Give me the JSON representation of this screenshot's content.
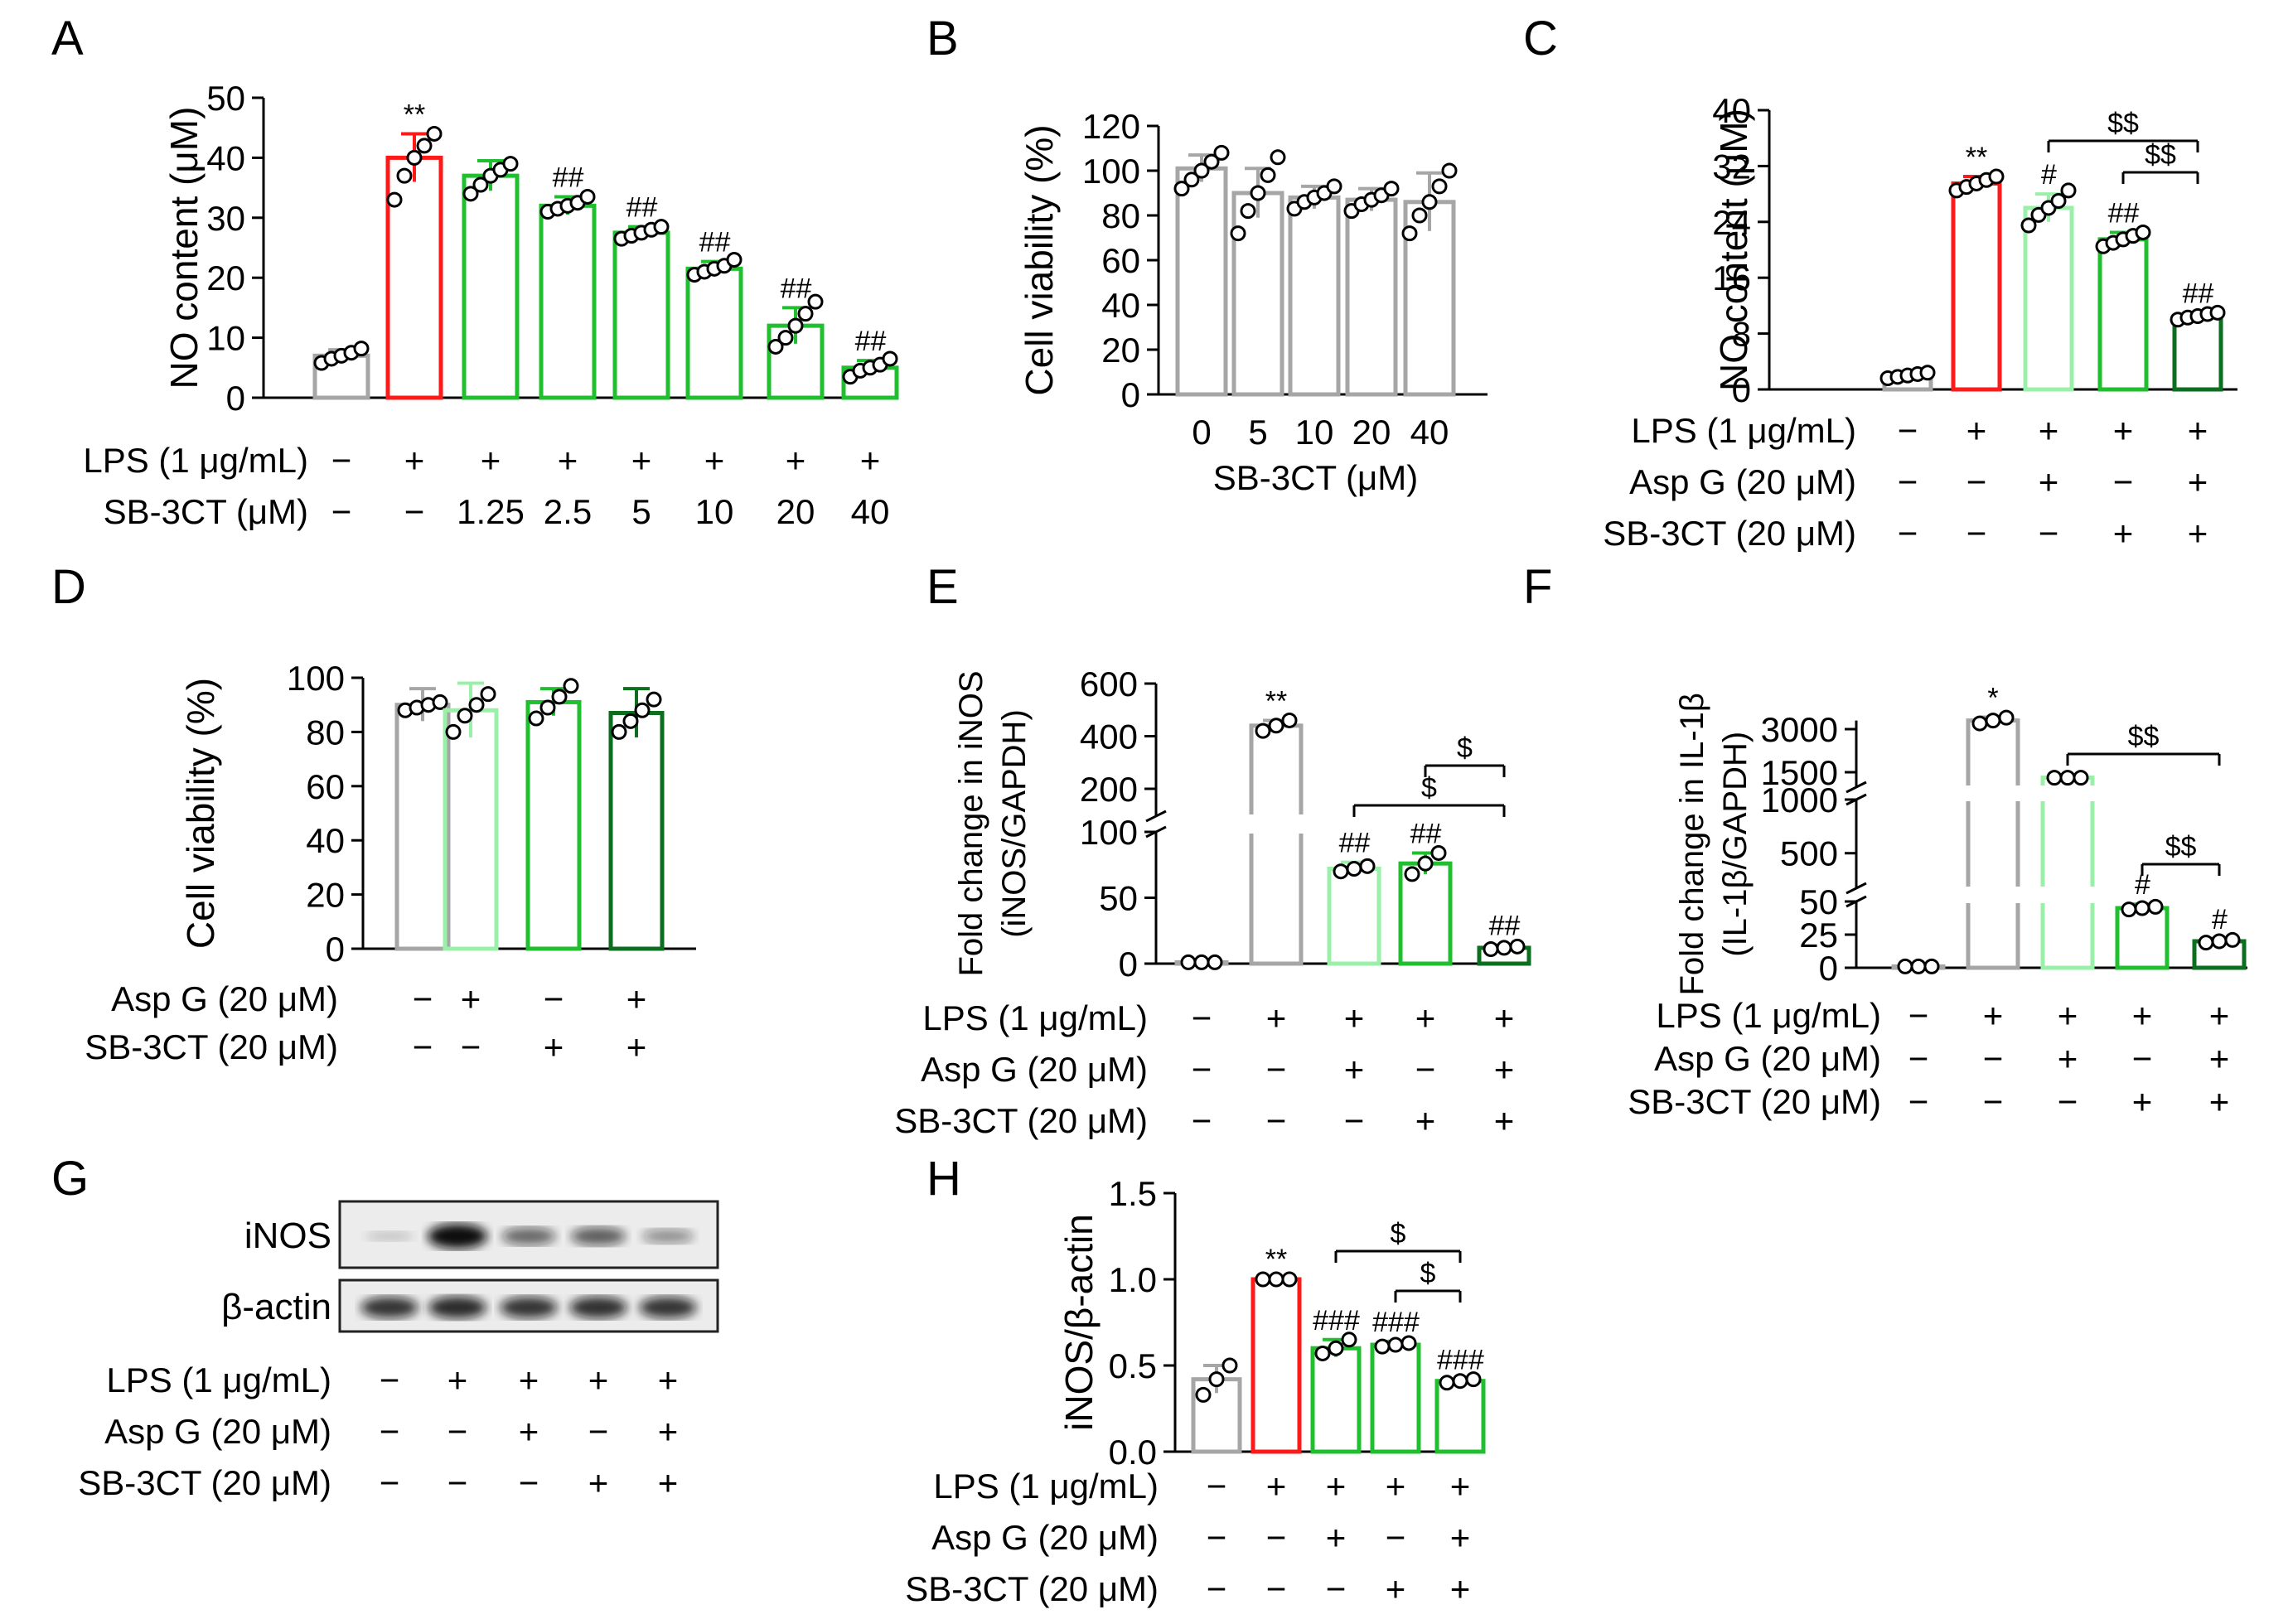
{
  "colors": {
    "control": "#a6a6a6",
    "lps": "#ff1a1a",
    "aspg": "#9af0a8",
    "sb3ct": "#1fbf2f",
    "combo": "#0c6e1f",
    "axis": "#000000"
  },
  "chart_data": [
    {
      "panel": "A",
      "type": "bar",
      "ylabel": "NO content (μM)",
      "ylim": [
        0,
        50
      ],
      "yticks": [
        0,
        10,
        20,
        30,
        40,
        50
      ],
      "values": [
        7,
        40,
        37,
        32,
        27.5,
        21.5,
        12,
        5
      ],
      "errors": [
        1,
        4,
        2.5,
        1.5,
        1,
        1.2,
        3,
        1.2
      ],
      "colors": [
        "control",
        "lps",
        "sb3ct",
        "sb3ct",
        "sb3ct",
        "sb3ct",
        "sb3ct",
        "sb3ct"
      ],
      "points": [
        [
          5.8,
          6.5,
          7.0,
          7.5,
          8.2
        ],
        [
          33,
          37,
          40,
          42,
          44
        ],
        [
          34,
          35.5,
          37,
          38,
          39
        ],
        [
          31,
          31.5,
          32,
          32.5,
          33.5
        ],
        [
          26.5,
          27,
          27.5,
          28,
          28.5
        ],
        [
          20.5,
          21,
          21.5,
          22,
          23
        ],
        [
          8.5,
          10,
          12,
          14,
          16
        ],
        [
          3.5,
          4.5,
          5,
          5.5,
          6.5
        ]
      ],
      "sig": [
        "",
        "**",
        "",
        "##",
        "##",
        "##",
        "##",
        "##"
      ],
      "conditions": [
        {
          "label": "LPS (1 μg/mL)",
          "values": [
            "−",
            "+",
            "+",
            "+",
            "+",
            "+",
            "+",
            "+"
          ]
        },
        {
          "label": "SB-3CT (μM)",
          "values": [
            "−",
            "−",
            "1.25",
            "2.5",
            "5",
            "10",
            "20",
            "40"
          ]
        }
      ]
    },
    {
      "panel": "B",
      "type": "bar",
      "ylabel": "Cell viability (%)",
      "ylim": [
        0,
        120
      ],
      "yticks": [
        0,
        20,
        40,
        60,
        80,
        100,
        120
      ],
      "categories": [
        "0",
        "5",
        "10",
        "20",
        "40"
      ],
      "xlabel": "SB-3CT (μM)",
      "values": [
        101,
        90,
        88,
        87,
        86
      ],
      "errors": [
        6,
        11,
        5,
        5,
        13
      ],
      "colors": [
        "control",
        "control",
        "control",
        "control",
        "control"
      ],
      "points": [
        [
          92,
          96,
          100,
          104,
          108
        ],
        [
          72,
          82,
          90,
          98,
          106
        ],
        [
          83,
          86,
          88,
          90,
          93
        ],
        [
          82,
          85,
          87,
          89,
          92
        ],
        [
          72,
          80,
          86,
          93,
          100
        ]
      ]
    },
    {
      "panel": "C",
      "type": "bar",
      "ylabel": "NO content (μM)",
      "ylim": [
        0,
        40
      ],
      "yticks": [
        0,
        8,
        16,
        24,
        32,
        40
      ],
      "values": [
        2,
        29.5,
        26,
        21.5,
        10.5
      ],
      "errors": [
        0.3,
        1,
        2,
        1,
        0.5
      ],
      "colors": [
        "control",
        "lps",
        "aspg",
        "sb3ct",
        "combo"
      ],
      "points": [
        [
          1.6,
          1.8,
          2.0,
          2.2,
          2.4
        ],
        [
          28.5,
          29,
          29.5,
          30,
          30.5
        ],
        [
          23.5,
          25,
          26,
          27,
          28.5
        ],
        [
          20.5,
          21,
          21.5,
          22,
          22.5
        ],
        [
          10,
          10.3,
          10.5,
          10.8,
          11
        ]
      ],
      "sig": [
        "",
        "**",
        "#",
        "##",
        "##"
      ],
      "brackets": [
        {
          "from": 2,
          "to": 4,
          "label": "$$"
        },
        {
          "from": 3,
          "to": 4,
          "label": "$$"
        }
      ],
      "conditions": [
        {
          "label": "LPS (1 μg/mL)",
          "values": [
            "−",
            "+",
            "+",
            "+",
            "+"
          ]
        },
        {
          "label": "Asp G (20 μM)",
          "values": [
            "−",
            "−",
            "+",
            "−",
            "+"
          ]
        },
        {
          "label": "SB-3CT (20 μM)",
          "values": [
            "−",
            "−",
            "−",
            "+",
            "+"
          ]
        }
      ]
    },
    {
      "panel": "D",
      "type": "bar",
      "ylabel": "Cell viability (%)",
      "ylim": [
        0,
        100
      ],
      "yticks": [
        0,
        20,
        40,
        60,
        80,
        100
      ],
      "values": [
        90,
        88,
        91,
        87
      ],
      "errors": [
        6,
        10,
        5,
        9
      ],
      "colors": [
        "control",
        "aspg",
        "sb3ct",
        "combo"
      ],
      "points": [
        [
          88,
          89,
          90,
          91
        ],
        [
          80,
          86,
          90,
          94
        ],
        [
          85,
          89,
          93,
          97
        ],
        [
          80,
          84,
          88,
          92
        ]
      ],
      "conditions": [
        {
          "label": "Asp G (20 μM)",
          "values": [
            "−",
            "+",
            "−",
            "+"
          ]
        },
        {
          "label": "SB-3CT (20 μM)",
          "values": [
            "−",
            "−",
            "+",
            "+"
          ]
        }
      ]
    },
    {
      "panel": "E",
      "type": "bar",
      "ylabel": [
        "Fold change in iNOS",
        "(iNOS/GAPDH)"
      ],
      "ylim": [
        0,
        600
      ],
      "axis_break": [
        100,
        200
      ],
      "yticks_lower": [
        0,
        50,
        100
      ],
      "yticks_upper": [
        200,
        400,
        600
      ],
      "values": [
        1,
        440,
        72,
        76,
        12
      ],
      "errors": [
        0.2,
        20,
        5,
        8,
        2
      ],
      "colors": [
        "control",
        "control",
        "aspg",
        "sb3ct",
        "combo"
      ],
      "points": [
        [
          1,
          1,
          1
        ],
        [
          420,
          440,
          460
        ],
        [
          70,
          72,
          74
        ],
        [
          68,
          76,
          84
        ],
        [
          11,
          12,
          13
        ]
      ],
      "sig": [
        "",
        "**",
        "##",
        "##",
        "##"
      ],
      "brackets": [
        {
          "from": 2,
          "to": 4,
          "label": "$"
        },
        {
          "from": 3,
          "to": 4,
          "label": "$"
        }
      ],
      "conditions": [
        {
          "label": "LPS (1 μg/mL)",
          "values": [
            "−",
            "+",
            "+",
            "+",
            "+"
          ]
        },
        {
          "label": "Asp G (20 μM)",
          "values": [
            "−",
            "−",
            "+",
            "−",
            "+"
          ]
        },
        {
          "label": "SB-3CT (20 μM)",
          "values": [
            "−",
            "−",
            "−",
            "+",
            "+"
          ]
        }
      ]
    },
    {
      "panel": "F",
      "type": "bar",
      "ylabel": [
        "Fold change in IL-1β",
        "(IL-1β/GAPDH)"
      ],
      "ylim": [
        0,
        3000
      ],
      "axis_breaks": [
        [
          50,
          250
        ],
        [
          1000,
          1500
        ]
      ],
      "yticks_lower": [
        0,
        25,
        50
      ],
      "yticks_mid": [
        500,
        1000
      ],
      "yticks_upper": [
        1500,
        3000
      ],
      "values": [
        1,
        3300,
        1400,
        45,
        20
      ],
      "errors": [
        0.2,
        120,
        20,
        3,
        2
      ],
      "colors": [
        "control",
        "control",
        "aspg",
        "sb3ct",
        "combo"
      ],
      "points": [
        [
          1,
          1,
          1
        ],
        [
          3200,
          3300,
          3400
        ],
        [
          1400,
          1400,
          1400
        ],
        [
          44,
          45,
          46
        ],
        [
          19,
          20,
          21
        ]
      ],
      "sig": [
        "",
        "*",
        "",
        "#",
        "#"
      ],
      "brackets": [
        {
          "from": 2,
          "to": 4,
          "label": "$$"
        },
        {
          "from": 3,
          "to": 4,
          "label": "$$"
        }
      ],
      "conditions": [
        {
          "label": "LPS (1 μg/mL)",
          "values": [
            "−",
            "+",
            "+",
            "+",
            "+"
          ]
        },
        {
          "label": "Asp G (20 μM)",
          "values": [
            "−",
            "−",
            "+",
            "−",
            "+"
          ]
        },
        {
          "label": "SB-3CT (20 μM)",
          "values": [
            "−",
            "−",
            "−",
            "+",
            "+"
          ]
        }
      ]
    },
    {
      "panel": "H",
      "type": "bar",
      "ylabel": "iNOS/β-actin",
      "ylim": [
        0,
        1.5
      ],
      "yticks": [
        "0.0",
        "0.5",
        "1.0",
        "1.5"
      ],
      "values": [
        0.42,
        1.0,
        0.6,
        0.62,
        0.41
      ],
      "errors": [
        0.08,
        0.005,
        0.05,
        0.02,
        0.01
      ],
      "colors": [
        "control",
        "lps",
        "sb3ct",
        "sb3ct",
        "sb3ct"
      ],
      "points": [
        [
          0.33,
          0.42,
          0.5
        ],
        [
          1.0,
          1.0,
          1.0
        ],
        [
          0.57,
          0.6,
          0.65
        ],
        [
          0.61,
          0.62,
          0.63
        ],
        [
          0.4,
          0.41,
          0.42
        ]
      ],
      "sig": [
        "",
        "**",
        "###",
        "###",
        "###"
      ],
      "brackets": [
        {
          "from": 2,
          "to": 4,
          "label": "$"
        },
        {
          "from": 3,
          "to": 4,
          "label": "$"
        }
      ],
      "conditions": [
        {
          "label": "LPS (1 μg/mL)",
          "values": [
            "−",
            "+",
            "+",
            "+",
            "+"
          ]
        },
        {
          "label": "Asp G (20 μM)",
          "values": [
            "−",
            "−",
            "+",
            "−",
            "+"
          ]
        },
        {
          "label": "SB-3CT (20 μM)",
          "values": [
            "−",
            "−",
            "−",
            "+",
            "+"
          ]
        }
      ]
    }
  ],
  "western_blot": {
    "panel": "G",
    "bands": [
      {
        "label": "iNOS",
        "intensities": [
          0.05,
          1.0,
          0.55,
          0.6,
          0.35
        ]
      },
      {
        "label": "β-actin",
        "intensities": [
          0.8,
          0.85,
          0.8,
          0.82,
          0.8
        ]
      }
    ],
    "conditions": [
      {
        "label": "LPS (1 μg/mL)",
        "values": [
          "−",
          "+",
          "+",
          "+",
          "+"
        ]
      },
      {
        "label": "Asp G (20 μM)",
        "values": [
          "−",
          "−",
          "+",
          "−",
          "+"
        ]
      },
      {
        "label": "SB-3CT (20 μM)",
        "values": [
          "−",
          "−",
          "−",
          "+",
          "+"
        ]
      }
    ]
  }
}
